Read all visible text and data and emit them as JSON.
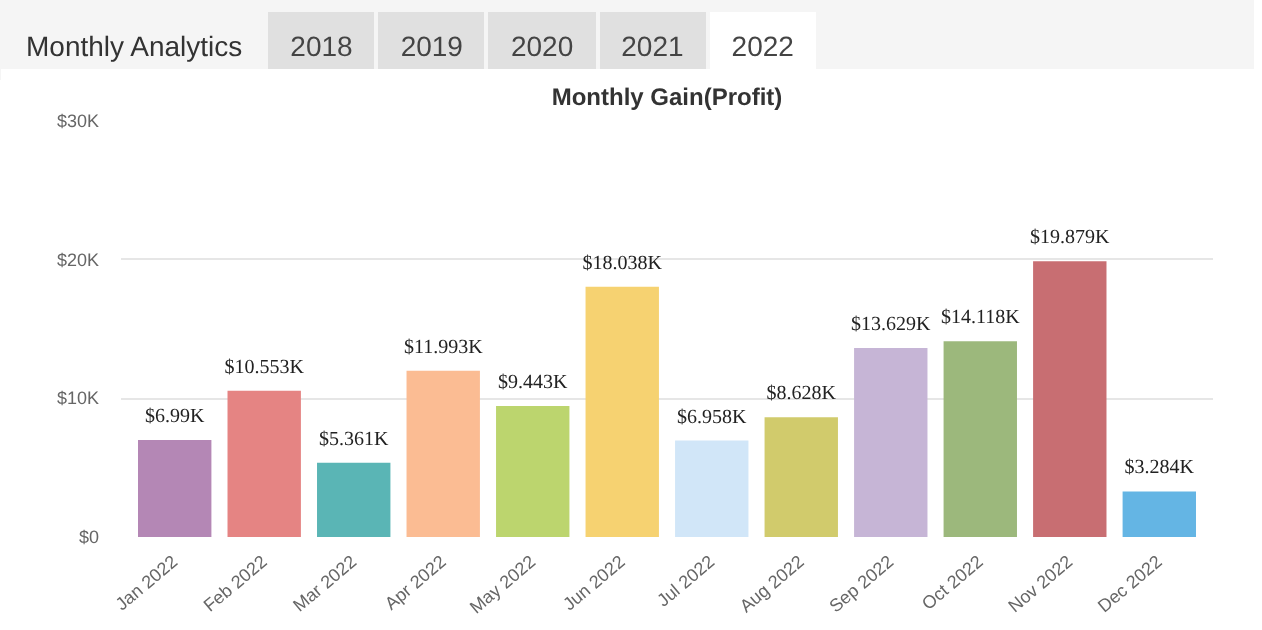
{
  "chart_data": {
    "type": "bar",
    "title": "Monthly Gain(Profit)",
    "annotations": [
      "Monthly Analytics",
      "2018",
      "2019",
      "2020",
      "2021",
      "2022"
    ],
    "categories": [
      "Jan 2022",
      "Feb 2022",
      "Mar 2022",
      "Apr 2022",
      "May 2022",
      "Jun 2022",
      "Jul 2022",
      "Aug 2022",
      "Sep 2022",
      "Oct 2022",
      "Nov 2022",
      "Dec 2022"
    ],
    "values": [
      6990,
      10553,
      5361,
      11993,
      9443,
      18038,
      6958,
      8628,
      13629,
      14118,
      19879,
      3284
    ],
    "value_labels": [
      "$6.99K",
      "$10.553K",
      "$5.361K",
      "$11.993K",
      "$9.443K",
      "$18.038K",
      "$6.958K",
      "$8.628K",
      "$13.629K",
      "$14.118K",
      "$19.879K",
      "$3.284K"
    ],
    "colors": [
      "#b487b5",
      "#e58483",
      "#5ab5b5",
      "#fbbc93",
      "#bcd56e",
      "#f6d271",
      "#d1e6f8",
      "#d1cb6c",
      "#c6b5d6",
      "#9cb87c",
      "#c86e72",
      "#64b5e4"
    ],
    "ylim": [
      0,
      30000
    ],
    "yticks": [
      {
        "value": 0,
        "label": "$0"
      },
      {
        "value": 10000,
        "label": "$10K"
      },
      {
        "value": 20000,
        "label": "$20K"
      },
      {
        "value": 30000,
        "label": "$30K"
      }
    ],
    "grid": "y"
  }
}
